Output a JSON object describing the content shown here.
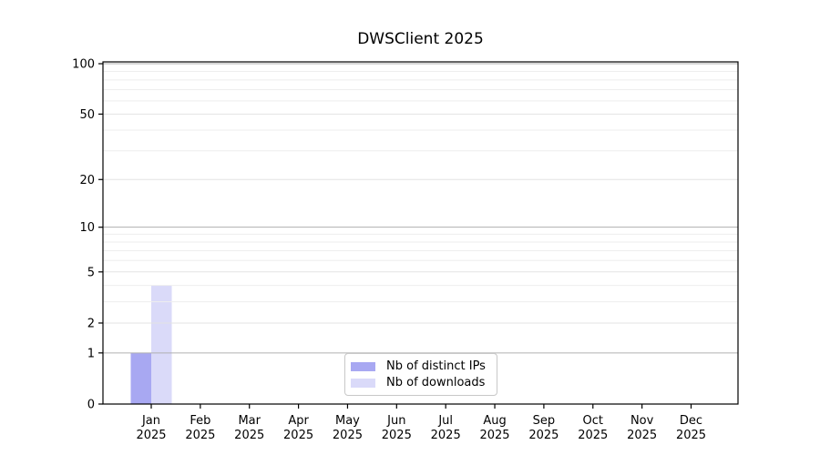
{
  "chart_data": {
    "type": "bar",
    "title": "DWSClient 2025",
    "categories": [
      "Jan",
      "Feb",
      "Mar",
      "Apr",
      "May",
      "Jun",
      "Jul",
      "Aug",
      "Sep",
      "Oct",
      "Nov",
      "Dec"
    ],
    "category_year": "2025",
    "series": [
      {
        "name": "Nb of distinct IPs",
        "color": "#a8a8f2",
        "values": [
          1,
          0,
          0,
          0,
          0,
          0,
          0,
          0,
          0,
          0,
          0,
          0
        ]
      },
      {
        "name": "Nb of downloads",
        "color": "#dadaf9",
        "values": [
          4,
          0,
          0,
          0,
          0,
          0,
          0,
          0,
          0,
          0,
          0,
          0
        ]
      }
    ],
    "yticks": [
      0,
      1,
      2,
      5,
      10,
      20,
      50,
      100
    ],
    "major_gridlines": [
      1,
      10,
      100
    ],
    "light_gridlines": [
      2,
      5,
      20,
      50
    ],
    "minor_gridlines": [
      3,
      4,
      6,
      7,
      8,
      9,
      30,
      40,
      60,
      70,
      80,
      90
    ],
    "ylim": [
      0,
      100
    ],
    "scale": "log1p",
    "grid": true,
    "grid_above_bars": true,
    "legend_position": "bottom-center",
    "xlabel": "",
    "ylabel": ""
  },
  "colors": {
    "background": "#ffffff",
    "axis": "#000000",
    "text": "#000000",
    "major_gridline": "#b0b0b0",
    "light_gridline": "#e3e3e3",
    "minor_gridline": "#eeeeee",
    "legend_border": "#c8c8c8",
    "bar_distinct_ips": "#a8a8f2",
    "bar_downloads": "#dadaf9"
  }
}
